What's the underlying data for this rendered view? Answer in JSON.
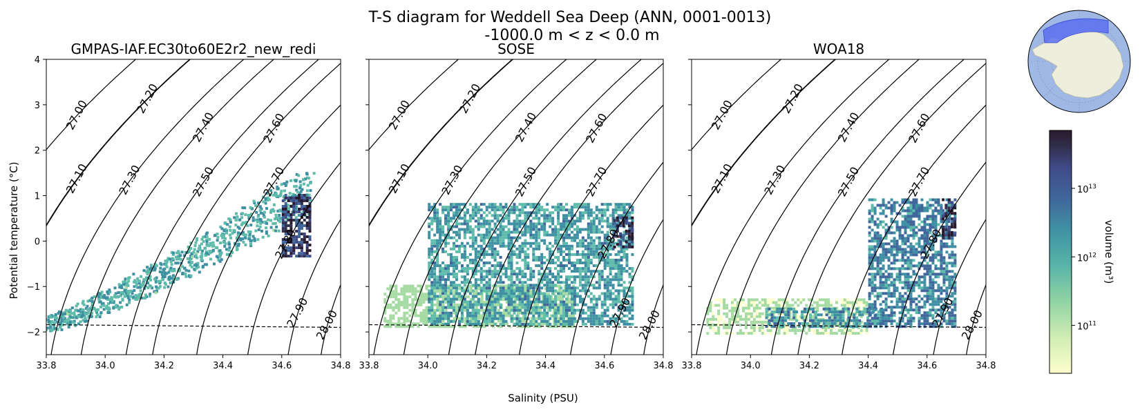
{
  "figure": {
    "title_line1": "T-S diagram for Weddell Sea Deep (ANN, 0001-0013)",
    "title_line2": "-1000.0 m < z < 0.0 m"
  },
  "chart_data": {
    "type": "heatmap",
    "xlabel": "Salinity (PSU)",
    "ylabel": "Potential temperature (°C)",
    "xlim": [
      33.8,
      34.8
    ],
    "ylim": [
      -2.5,
      4
    ],
    "xticks": [
      "33.8",
      "34.0",
      "34.2",
      "34.4",
      "34.6",
      "34.8"
    ],
    "yticks": [
      "−2",
      "−1",
      "0",
      "1",
      "2",
      "3",
      "4"
    ],
    "freezing_line": {
      "style": "dashed",
      "temp_at_33_8": -1.84,
      "temp_at_34_8": -1.9
    },
    "density_contours": [
      {
        "label": "27.00",
        "anchor_S": 33.905,
        "anchor_T": 2.77
      },
      {
        "label": "27.10",
        "anchor_S": 33.905,
        "anchor_T": 1.37
      },
      {
        "label": "27.20",
        "anchor_S": 34.145,
        "anchor_T": 3.13
      },
      {
        "label": "27.30",
        "anchor_S": 34.085,
        "anchor_T": 1.34
      },
      {
        "label": "27.40",
        "anchor_S": 34.335,
        "anchor_T": 2.5
      },
      {
        "label": "27.50",
        "anchor_S": 34.335,
        "anchor_T": 1.3
      },
      {
        "label": "27.60",
        "anchor_S": 34.575,
        "anchor_T": 2.48
      },
      {
        "label": "27.70",
        "anchor_S": 34.575,
        "anchor_T": 1.3
      },
      {
        "label": "27.80",
        "anchor_S": 34.615,
        "anchor_T": -0.07
      },
      {
        "label": "27.90",
        "anchor_S": 34.655,
        "anchor_T": -1.58
      },
      {
        "label": "28.00",
        "anchor_S": 34.755,
        "anchor_T": -1.85
      }
    ],
    "panels": [
      {
        "title": "GMPAS-IAF.EC30to60E2r2_new_redi",
        "regions": [
          {
            "S": [
              33.8,
              34.1
            ],
            "T": [
              -1.8,
              -1.9
            ],
            "S_end": [
              34.5,
              34.7
            ],
            "T_end": [
              0.4,
              1.2
            ],
            "level": 0.35
          },
          {
            "S": [
              34.6,
              34.7
            ],
            "T": [
              -0.3,
              1.1
            ],
            "level": 0.95
          }
        ]
      },
      {
        "title": "SOSE",
        "regions": [
          {
            "S": [
              33.85,
              34.5
            ],
            "T": [
              -1.85,
              -0.9
            ],
            "level": 0.15
          },
          {
            "S": [
              34.0,
              34.7
            ],
            "T": [
              -1.8,
              0.9
            ],
            "level": 0.45
          },
          {
            "S": [
              34.63,
              34.7
            ],
            "T": [
              -0.1,
              0.6
            ],
            "level": 1.0
          }
        ]
      },
      {
        "title": "WOA18",
        "regions": [
          {
            "S": [
              33.85,
              34.4
            ],
            "T": [
              -2.0,
              -1.2
            ],
            "level": 0.1
          },
          {
            "S": [
              34.05,
              34.45
            ],
            "T": [
              -1.85,
              -1.4
            ],
            "level": 0.5
          },
          {
            "S": [
              34.4,
              34.7
            ],
            "T": [
              -1.85,
              1.0
            ],
            "level": 0.55
          },
          {
            "S": [
              34.65,
              34.7
            ],
            "T": [
              0.1,
              1.0
            ],
            "level": 1.0
          }
        ]
      }
    ],
    "colorbar": {
      "label": "volume (m³)",
      "scale": "log",
      "range": [
        20000000000.0,
        70000000000000.0
      ],
      "tick_bases": [
        "10",
        "10",
        "10"
      ],
      "tick_exponents": [
        "13",
        "12",
        "11"
      ],
      "tick_values": [
        10000000000000.0,
        1000000000000.0,
        100000000000.0
      ],
      "colormap": "cmocean deep",
      "colors": [
        "#fdfecc",
        "#a5dba2",
        "#5fbcaa",
        "#3f8fa3",
        "#40669c",
        "#3f4a87",
        "#32304e",
        "#281a2c"
      ]
    },
    "inset_map": {
      "projection": "south polar stereographic",
      "ocean_color": "#a0b8e6",
      "land_color": "#eeeedc",
      "region_color": "#5b6ef0"
    }
  }
}
